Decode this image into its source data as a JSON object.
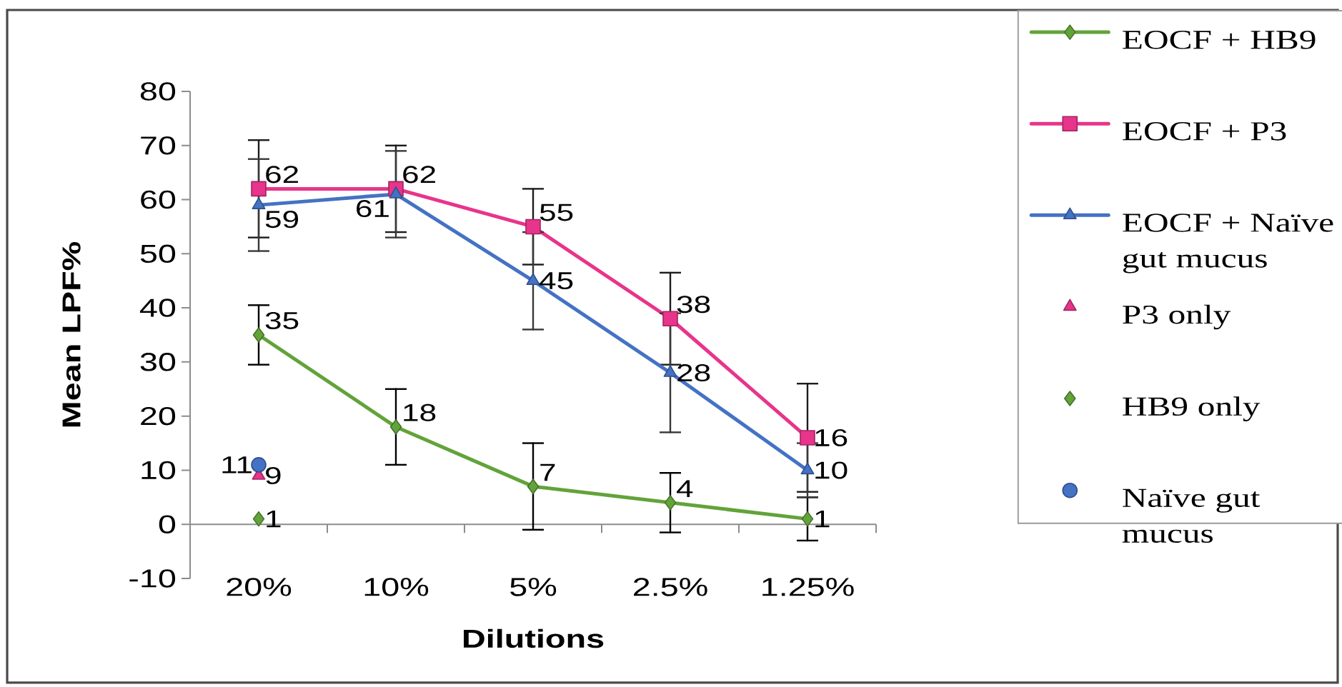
{
  "chart_data": {
    "type": "line",
    "xlabel": "Dilutions",
    "ylabel": "Mean LPF%",
    "categories": [
      "20%",
      "10%",
      "5%",
      "2.5%",
      "1.25%"
    ],
    "series": [
      {
        "name": "EOCF + HB9",
        "color": "#62a33a",
        "marker": "diamond",
        "values": [
          35,
          18,
          7,
          4,
          1
        ],
        "errors": [
          5.5,
          7,
          8,
          5.5,
          4
        ]
      },
      {
        "name": "EOCF + P3",
        "color": "#e8348b",
        "marker": "square",
        "values": [
          62,
          62,
          55,
          38,
          16
        ],
        "errors": [
          9,
          8,
          7,
          8.5,
          10
        ]
      },
      {
        "name": "EOCF + Naïve gut mucus",
        "color": "#4472c4",
        "marker": "triangle",
        "values": [
          59,
          61,
          45,
          28,
          10
        ],
        "errors": [
          8.5,
          8,
          9,
          11,
          5
        ]
      },
      {
        "name": "P3 only",
        "type": "scatter",
        "color": "#e8348b",
        "marker": "triangle",
        "values": [
          9,
          null,
          null,
          null,
          null
        ]
      },
      {
        "name": "HB9 only",
        "type": "scatter",
        "color": "#62a33a",
        "marker": "diamond",
        "values": [
          1,
          null,
          null,
          null,
          null
        ]
      },
      {
        "name": "Naïve gut mucus",
        "type": "scatter",
        "color": "#4472c4",
        "marker": "circle",
        "values": [
          11,
          null,
          null,
          null,
          null
        ]
      }
    ],
    "ylim": [
      -10,
      80
    ],
    "yticks": [
      -10,
      0,
      10,
      20,
      30,
      40,
      50,
      60,
      70,
      80
    ],
    "data_labels": true,
    "legend": "right"
  }
}
